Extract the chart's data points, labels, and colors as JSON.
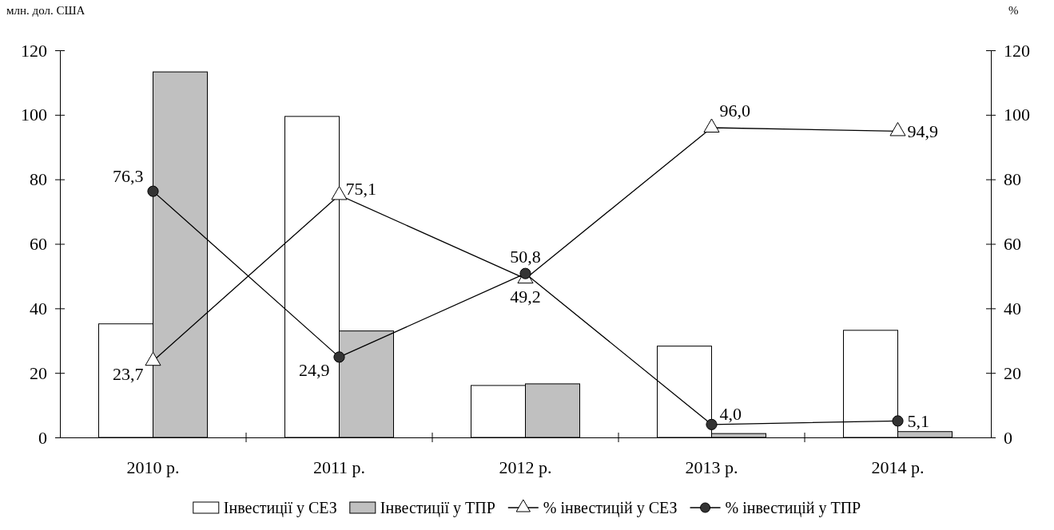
{
  "chart_data": {
    "type": "bar",
    "ylabel": "млн. дол. США",
    "y2label": "%",
    "categories": [
      "2010 р.",
      "2011 р.",
      "2012 р.",
      "2013 р.",
      "2014 р."
    ],
    "ylim": [
      0,
      120
    ],
    "yticks": [
      0,
      20,
      40,
      60,
      80,
      100,
      120
    ],
    "y2lim": [
      0,
      120
    ],
    "y2ticks": [
      0,
      20,
      40,
      60,
      80,
      100,
      120
    ],
    "grid": false,
    "legend": "bottom",
    "series": [
      {
        "name": "Інвестиції у СЕЗ",
        "color": "#ffffff",
        "values": [
          35.2,
          99.5,
          16.1,
          28.3,
          33.2
        ]
      },
      {
        "name": "Інвестиції у ТПР",
        "color": "#c0c0c0",
        "values": [
          113.3,
          33.0,
          16.6,
          1.2,
          1.8
        ]
      },
      {
        "name": "% інвестицій у СЕЗ",
        "type": "line",
        "axis": "y2",
        "color": "#000000",
        "marker": "triangle",
        "values": [
          23.7,
          75.1,
          49.2,
          96.0,
          94.9
        ],
        "value_labels": [
          "23,7",
          "75,1",
          "49,2",
          "96,0",
          "94,9"
        ]
      },
      {
        "name": "% інвестицій у ТПР",
        "type": "line",
        "axis": "y2",
        "color": "#000000",
        "marker": "circle",
        "values": [
          76.3,
          24.9,
          50.8,
          4.0,
          5.1
        ],
        "value_labels": [
          "76,3",
          "24,9",
          "50,8",
          "4,0",
          "5,1"
        ]
      }
    ]
  }
}
